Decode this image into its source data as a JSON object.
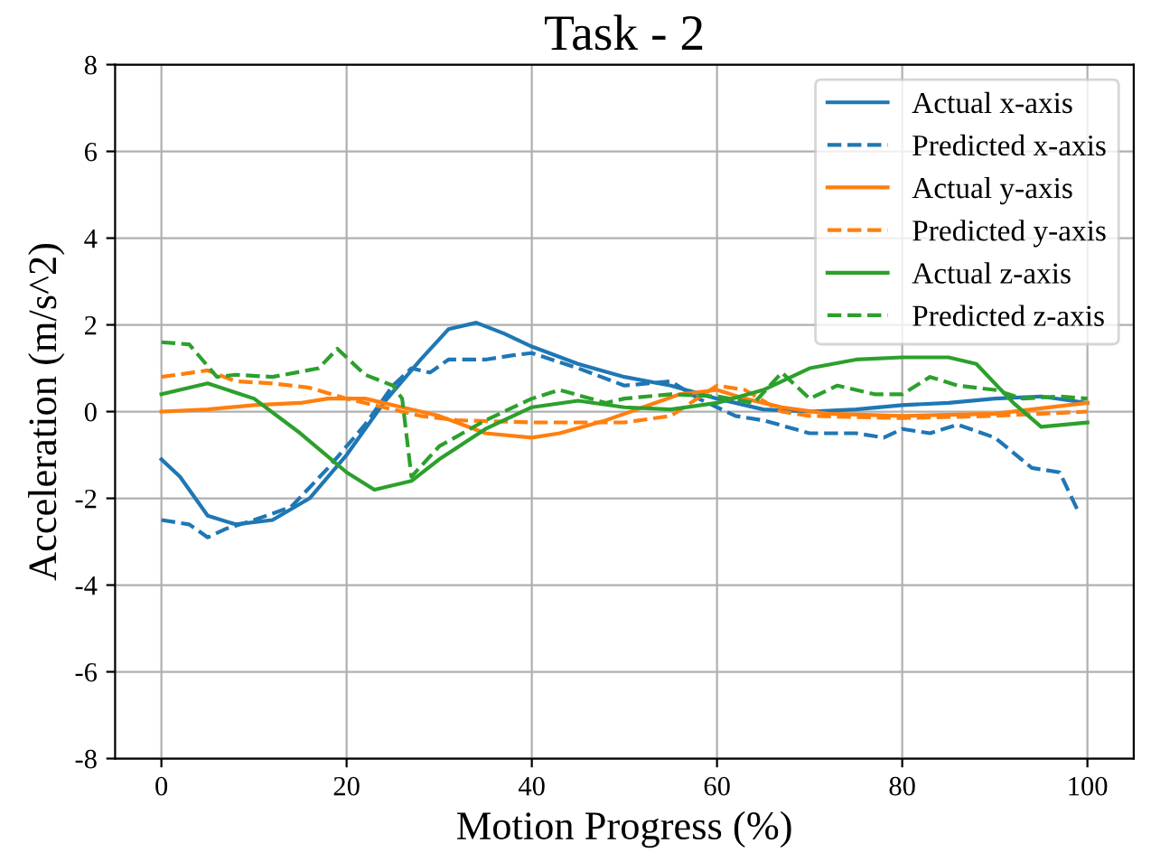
{
  "chart_data": {
    "type": "line",
    "title": "Task - 2",
    "xlabel": "Motion Progress (%)",
    "ylabel": "Acceleration (m/s^2)",
    "xlim": [
      -5,
      105
    ],
    "xticks": [
      0,
      20,
      40,
      60,
      80,
      100
    ],
    "ylim": [
      -8,
      8
    ],
    "yticks": [
      -8,
      -6,
      -4,
      -2,
      0,
      2,
      4,
      6,
      8
    ],
    "grid": true,
    "legend": "top right",
    "series": [
      {
        "name": "Actual x-axis",
        "color": "#1f77b4",
        "line_style": "solid",
        "x": [
          0,
          2,
          5,
          8,
          12,
          16,
          20,
          24,
          28,
          31,
          34,
          37,
          40,
          45,
          50,
          55,
          60,
          65,
          70,
          75,
          80,
          85,
          90,
          95,
          100
        ],
        "values": [
          -1.1,
          -1.5,
          -2.4,
          -2.6,
          -2.5,
          -2.0,
          -1.0,
          0.2,
          1.2,
          1.9,
          2.05,
          1.8,
          1.5,
          1.1,
          0.8,
          0.6,
          0.3,
          0.05,
          0.0,
          0.05,
          0.15,
          0.2,
          0.3,
          0.35,
          0.2
        ]
      },
      {
        "name": "Predicted x-axis",
        "color": "#1f77b4",
        "line_style": "dashed",
        "x": [
          0,
          3,
          5,
          7,
          10,
          14,
          18,
          22,
          25,
          27,
          29,
          31,
          35,
          38,
          40,
          45,
          50,
          55,
          58,
          62,
          65,
          70,
          75,
          78,
          80,
          83,
          86,
          90,
          94,
          97,
          99
        ],
        "values": [
          -2.5,
          -2.6,
          -2.9,
          -2.7,
          -2.5,
          -2.2,
          -1.3,
          -0.3,
          0.6,
          1.0,
          0.9,
          1.2,
          1.2,
          1.3,
          1.35,
          1.0,
          0.6,
          0.7,
          0.3,
          -0.1,
          -0.2,
          -0.5,
          -0.5,
          -0.6,
          -0.4,
          -0.5,
          -0.3,
          -0.6,
          -1.3,
          -1.4,
          -2.3
        ]
      },
      {
        "name": "Actual y-axis",
        "color": "#ff7f0e",
        "line_style": "solid",
        "x": [
          0,
          5,
          10,
          15,
          18,
          22,
          26,
          30,
          35,
          40,
          43,
          48,
          52,
          56,
          60,
          63,
          67,
          72,
          80,
          90,
          100
        ],
        "values": [
          0,
          0.05,
          0.15,
          0.2,
          0.3,
          0.3,
          0.1,
          -0.1,
          -0.5,
          -0.6,
          -0.5,
          -0.2,
          0.1,
          0.4,
          0.5,
          0.3,
          0.1,
          -0.05,
          -0.1,
          -0.05,
          0.2
        ]
      },
      {
        "name": "Predicted y-axis",
        "color": "#ff7f0e",
        "line_style": "dashed",
        "x": [
          0,
          5,
          8,
          12,
          16,
          20,
          24,
          28,
          32,
          40,
          50,
          55,
          60,
          63,
          67,
          70,
          80,
          90,
          100
        ],
        "values": [
          0.8,
          0.95,
          0.7,
          0.65,
          0.55,
          0.3,
          0.1,
          -0.1,
          -0.2,
          -0.25,
          -0.25,
          -0.1,
          0.6,
          0.5,
          0.0,
          -0.1,
          -0.15,
          -0.1,
          0.0
        ]
      },
      {
        "name": "Actual z-axis",
        "color": "#2ca02c",
        "line_style": "solid",
        "x": [
          0,
          5,
          10,
          15,
          20,
          23,
          27,
          30,
          35,
          40,
          45,
          50,
          55,
          60,
          65,
          70,
          75,
          80,
          85,
          88,
          92,
          95,
          100
        ],
        "values": [
          0.4,
          0.65,
          0.3,
          -0.5,
          -1.4,
          -1.8,
          -1.6,
          -1.1,
          -0.4,
          0.1,
          0.25,
          0.1,
          0.05,
          0.2,
          0.5,
          1.0,
          1.2,
          1.25,
          1.25,
          1.1,
          0.2,
          -0.35,
          -0.25
        ]
      },
      {
        "name": "Predicted z-axis",
        "color": "#2ca02c",
        "line_style": "dashed",
        "x": [
          0,
          3,
          6,
          8,
          12,
          17,
          19,
          22,
          25,
          26,
          27,
          30,
          35,
          40,
          43,
          48,
          50,
          55,
          60,
          64,
          67,
          70,
          73,
          77,
          80,
          83,
          86,
          90,
          93,
          97,
          100
        ],
        "values": [
          1.6,
          1.55,
          0.8,
          0.85,
          0.8,
          1.0,
          1.45,
          0.85,
          0.6,
          0.3,
          -1.5,
          -0.8,
          -0.2,
          0.3,
          0.5,
          0.2,
          0.3,
          0.4,
          0.35,
          0.2,
          0.9,
          0.3,
          0.6,
          0.4,
          0.4,
          0.8,
          0.6,
          0.5,
          0.3,
          0.35,
          0.3
        ]
      }
    ]
  }
}
